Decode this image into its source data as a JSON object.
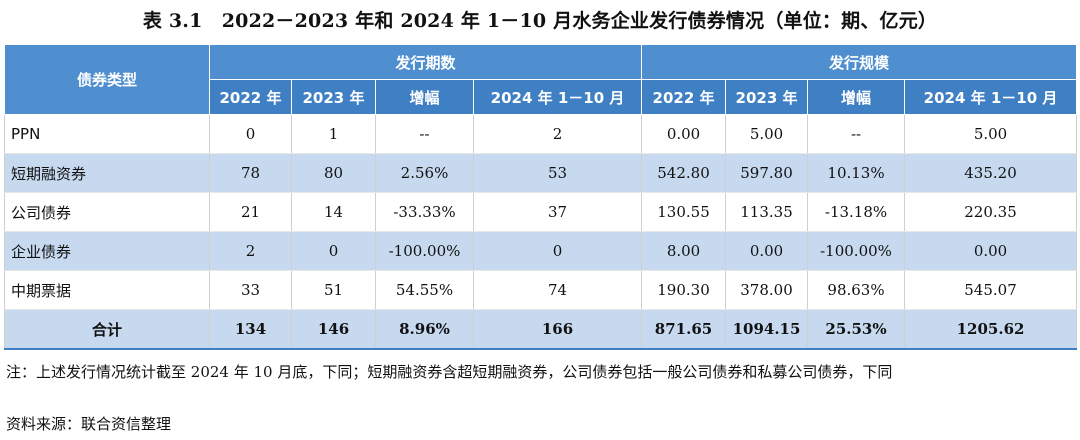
{
  "title": "表 3.1　2022－2023 年和 2024 年 1－10 月水务企业发行债券情况（单位：期、亿元）",
  "header": {
    "type_col": "债券类型",
    "group_count": "发行期数",
    "group_scale": "发行规模",
    "sub": [
      "2022 年",
      "2023 年",
      "增幅",
      "2024 年 1－10 月",
      "2022 年",
      "2023 年",
      "增幅",
      "2024 年 1－10 月"
    ]
  },
  "rows": [
    {
      "label": "PPN",
      "cells": [
        "0",
        "1",
        "--",
        "2",
        "0.00",
        "5.00",
        "--",
        "5.00"
      ]
    },
    {
      "label": "短期融资券",
      "cells": [
        "78",
        "80",
        "2.56%",
        "53",
        "542.80",
        "597.80",
        "10.13%",
        "435.20"
      ]
    },
    {
      "label": "公司债券",
      "cells": [
        "21",
        "14",
        "-33.33%",
        "37",
        "130.55",
        "113.35",
        "-13.18%",
        "220.35"
      ]
    },
    {
      "label": "企业债券",
      "cells": [
        "2",
        "0",
        "-100.00%",
        "0",
        "8.00",
        "0.00",
        "-100.00%",
        "0.00"
      ]
    },
    {
      "label": "中期票据",
      "cells": [
        "33",
        "51",
        "54.55%",
        "74",
        "190.30",
        "378.00",
        "98.63%",
        "545.07"
      ]
    }
  ],
  "total": {
    "label": "合计",
    "cells": [
      "134",
      "146",
      "8.96%",
      "166",
      "871.65",
      "1094.15",
      "25.53%",
      "1205.62"
    ]
  },
  "notes": {
    "note": "注：上述发行情况统计截至 2024 年 10 月底，下同；短期融资券含超短期融资券，公司债券包括一般公司债券和私募公司债券，下同",
    "source": "资料来源：联合资信整理"
  },
  "colors": {
    "header": "#4f8fd0",
    "band": "#c6d9ef"
  }
}
